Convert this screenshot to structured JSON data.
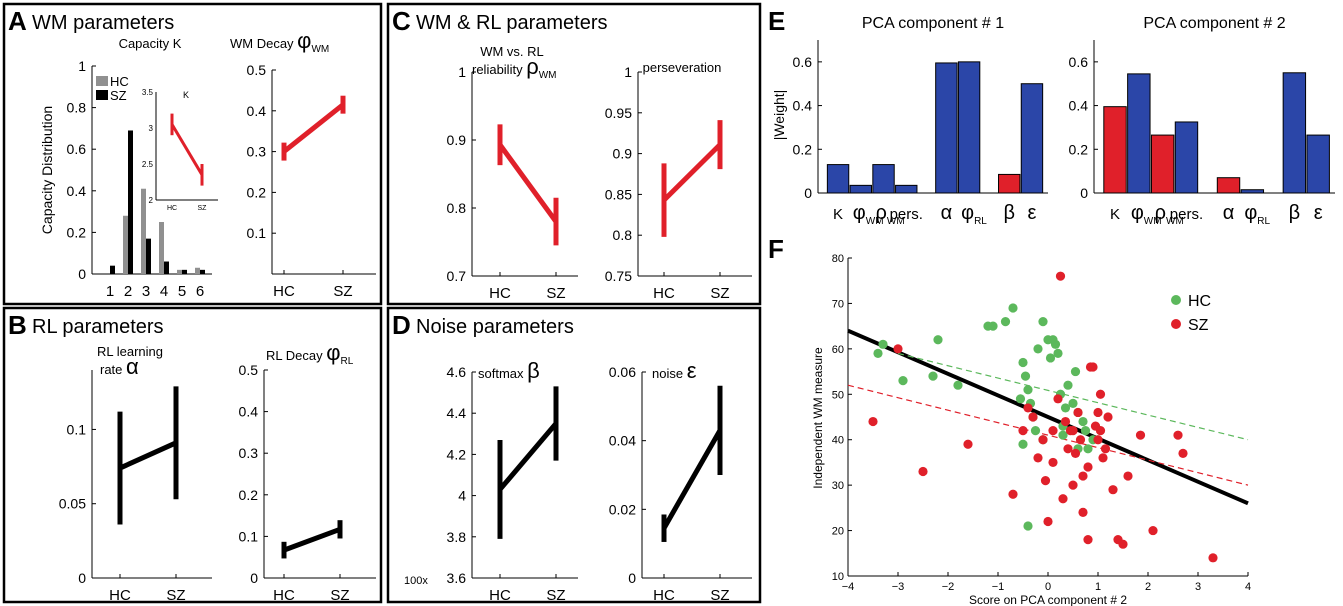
{
  "panels": {
    "A": {
      "letter": "A",
      "title": "WM parameters"
    },
    "B": {
      "letter": "B",
      "title": "RL parameters"
    },
    "C": {
      "letter": "C",
      "title": "WM & RL parameters"
    },
    "D": {
      "letter": "D",
      "title": "Noise parameters"
    },
    "E": {
      "letter": "E"
    },
    "F": {
      "letter": "F"
    }
  },
  "colors": {
    "hc": "#5cb85c",
    "sz": "#e0202a",
    "blue": "#2b46a8",
    "red": "#e0202a",
    "gray": "#909090",
    "black": "#000000"
  },
  "a1": {
    "title": "Capacity K",
    "ylabel": "Capacity Distribution",
    "legend": [
      "HC",
      "SZ"
    ],
    "inset_label": "K"
  },
  "a2": {
    "title_prefix": "WM Decay ",
    "title_sym": "φ",
    "title_sub": "WM"
  },
  "b1": {
    "title_line1": "RL learning",
    "title_line2": "rate ",
    "title_sym": "α"
  },
  "b2": {
    "title_prefix": "RL Decay ",
    "title_sym": "φ",
    "title_sub": "RL"
  },
  "c1": {
    "title_line1": "WM vs. RL",
    "title_line2": "reliability ",
    "title_sym": "ρ",
    "title_sub": "WM"
  },
  "c2": {
    "title": "perseveration"
  },
  "d1": {
    "title_prefix": "softmax ",
    "title_sym": "β",
    "scale_note": "100x"
  },
  "d2": {
    "title_prefix": "noise ",
    "title_sym": "ε"
  },
  "e": {
    "ylabel": "|Weight|",
    "xlabels": [
      {
        "t": "K"
      },
      {
        "t": "φ",
        "s": "WM"
      },
      {
        "t": "ρ",
        "s": "WM"
      },
      {
        "t": "pers."
      },
      {
        "t": "α"
      },
      {
        "t": "φ",
        "s": "RL"
      },
      {
        "t": "β"
      },
      {
        "t": "ε"
      }
    ]
  },
  "f": {
    "xlabel": "Score on PCA component # 2",
    "ylabel": "Independent WM measure",
    "legend": [
      "HC",
      "SZ"
    ]
  },
  "chart_data": [
    {
      "id": "A1",
      "type": "bar",
      "title": "Capacity K",
      "ylabel": "Capacity Distribution",
      "categories": [
        "1",
        "2",
        "3",
        "4",
        "5",
        "6"
      ],
      "ylim": [
        0,
        1
      ],
      "yticks": [
        0,
        0.2,
        0.4,
        0.6,
        0.8,
        1
      ],
      "series": [
        {
          "name": "HC",
          "values": [
            0,
            0.28,
            0.41,
            0.25,
            0.02,
            0.03
          ]
        },
        {
          "name": "SZ",
          "values": [
            0.04,
            0.69,
            0.17,
            0.06,
            0.02,
            0.02
          ]
        }
      ]
    },
    {
      "id": "A1-inset",
      "type": "line",
      "title": "K",
      "categories": [
        "HC",
        "SZ"
      ],
      "ylim": [
        2,
        3.5
      ],
      "yticks": [
        2,
        2.5,
        3,
        3.5
      ],
      "series": [
        {
          "values": [
            3.05,
            2.35
          ],
          "err": [
            0.15,
            0.15
          ]
        }
      ]
    },
    {
      "id": "A2",
      "type": "line",
      "categories": [
        "HC",
        "SZ"
      ],
      "ylim": [
        0,
        0.5
      ],
      "yticks": [
        0.1,
        0.2,
        0.3,
        0.4,
        0.5
      ],
      "series": [
        {
          "values": [
            0.3,
            0.415
          ],
          "err": [
            0.022,
            0.022
          ]
        }
      ]
    },
    {
      "id": "B1",
      "type": "line",
      "categories": [
        "HC",
        "SZ"
      ],
      "ylim": [
        0,
        0.14
      ],
      "yticks": [
        0,
        0.05,
        0.1
      ],
      "series": [
        {
          "values": [
            0.074,
            0.091
          ],
          "err": [
            0.038,
            0.038
          ]
        }
      ]
    },
    {
      "id": "B2",
      "type": "line",
      "categories": [
        "HC",
        "SZ"
      ],
      "ylim": [
        0,
        0.5
      ],
      "yticks": [
        0,
        0.1,
        0.2,
        0.3,
        0.4,
        0.5
      ],
      "series": [
        {
          "values": [
            0.067,
            0.117
          ],
          "err": [
            0.02,
            0.022
          ]
        }
      ]
    },
    {
      "id": "C1",
      "type": "line",
      "categories": [
        "HC",
        "SZ"
      ],
      "ylim": [
        0.7,
        1
      ],
      "yticks": [
        0.7,
        0.8,
        0.9,
        1
      ],
      "series": [
        {
          "values": [
            0.893,
            0.78
          ],
          "err": [
            0.03,
            0.035
          ]
        }
      ]
    },
    {
      "id": "C2",
      "type": "line",
      "categories": [
        "HC",
        "SZ"
      ],
      "ylim": [
        0.75,
        1
      ],
      "yticks": [
        0.75,
        0.8,
        0.85,
        0.9,
        0.95,
        1
      ],
      "series": [
        {
          "values": [
            0.843,
            0.911
          ],
          "err": [
            0.045,
            0.03
          ]
        }
      ]
    },
    {
      "id": "D1",
      "type": "line",
      "categories": [
        "HC",
        "SZ"
      ],
      "ylim": [
        3.6,
        4.6
      ],
      "yticks": [
        3.6,
        3.8,
        4,
        4.2,
        4.4,
        4.6
      ],
      "series": [
        {
          "values": [
            4.03,
            4.35
          ],
          "err": [
            0.24,
            0.18
          ]
        }
      ]
    },
    {
      "id": "D2",
      "type": "line",
      "categories": [
        "HC",
        "SZ"
      ],
      "ylim": [
        0,
        0.06
      ],
      "yticks": [
        0,
        0.02,
        0.04,
        0.06
      ],
      "series": [
        {
          "values": [
            0.0145,
            0.043
          ],
          "err": [
            0.004,
            0.013
          ]
        }
      ]
    },
    {
      "id": "E1",
      "type": "bar",
      "title": "PCA component # 1",
      "ylabel": "|Weight|",
      "categories": [
        "K",
        "φWM",
        "ρWM",
        "pers.",
        "α",
        "φRL",
        "β",
        "ε"
      ],
      "ylim": [
        0,
        0.7
      ],
      "yticks": [
        0,
        0.2,
        0.4,
        0.6
      ],
      "values": [
        0.13,
        0.035,
        0.13,
        0.035,
        0.595,
        0.6,
        0.085,
        0.5
      ],
      "colors": [
        "blue",
        "blue",
        "blue",
        "blue",
        "blue",
        "blue",
        "red",
        "blue"
      ]
    },
    {
      "id": "E2",
      "type": "bar",
      "title": "PCA component # 2",
      "categories": [
        "K",
        "φWM",
        "ρWM",
        "pers.",
        "α",
        "φRL",
        "β",
        "ε"
      ],
      "ylim": [
        0,
        0.7
      ],
      "yticks": [
        0,
        0.2,
        0.4,
        0.6
      ],
      "values": [
        0.395,
        0.545,
        0.265,
        0.325,
        0.07,
        0.015,
        0.55,
        0.265
      ],
      "colors": [
        "red",
        "blue",
        "red",
        "blue",
        "red",
        "blue",
        "blue",
        "blue"
      ]
    },
    {
      "id": "F",
      "type": "scatter",
      "xlabel": "Score on PCA component # 2",
      "ylabel": "Independent WM measure",
      "xlim": [
        -4,
        4
      ],
      "ylim": [
        10,
        80
      ],
      "xticks": [
        -4,
        -3,
        -2,
        -1,
        0,
        1,
        2,
        3,
        4
      ],
      "yticks": [
        10,
        20,
        30,
        40,
        50,
        60,
        70,
        80
      ],
      "series": [
        {
          "name": "HC",
          "points": [
            [
              -3.4,
              59
            ],
            [
              -3.3,
              61
            ],
            [
              -2.9,
              53
            ],
            [
              -2.2,
              62
            ],
            [
              -2.3,
              54
            ],
            [
              -1.8,
              52
            ],
            [
              -1.2,
              65
            ],
            [
              -1.1,
              65
            ],
            [
              -0.85,
              66
            ],
            [
              -0.7,
              69
            ],
            [
              -0.55,
              49
            ],
            [
              -0.5,
              57
            ],
            [
              -0.45,
              54
            ],
            [
              -0.4,
              51
            ],
            [
              -0.35,
              48
            ],
            [
              -0.3,
              45
            ],
            [
              -0.25,
              42
            ],
            [
              -0.2,
              60
            ],
            [
              -0.1,
              66
            ],
            [
              0.0,
              62
            ],
            [
              0.05,
              58
            ],
            [
              0.1,
              62
            ],
            [
              0.15,
              61
            ],
            [
              0.2,
              59
            ],
            [
              0.25,
              50
            ],
            [
              0.3,
              43
            ],
            [
              0.35,
              47
            ],
            [
              0.4,
              52
            ],
            [
              0.5,
              48
            ],
            [
              0.55,
              55
            ],
            [
              0.6,
              46
            ],
            [
              0.7,
              44
            ],
            [
              0.75,
              42
            ],
            [
              0.9,
              40
            ],
            [
              0.3,
              41
            ],
            [
              -0.1,
              40
            ],
            [
              0.6,
              38
            ],
            [
              -0.5,
              39
            ],
            [
              0.8,
              38
            ],
            [
              -0.4,
              21
            ]
          ]
        },
        {
          "name": "SZ",
          "points": [
            [
              -3.5,
              44
            ],
            [
              -2.5,
              33
            ],
            [
              -3.0,
              60
            ],
            [
              -0.7,
              28
            ],
            [
              -0.5,
              42
            ],
            [
              -0.4,
              47
            ],
            [
              -0.3,
              45
            ],
            [
              -0.2,
              36
            ],
            [
              -0.1,
              40
            ],
            [
              -0.05,
              31
            ],
            [
              0.0,
              22
            ],
            [
              0.1,
              35
            ],
            [
              0.1,
              42
            ],
            [
              0.2,
              49
            ],
            [
              0.25,
              76
            ],
            [
              0.3,
              27
            ],
            [
              0.35,
              44
            ],
            [
              0.4,
              38
            ],
            [
              0.45,
              42
            ],
            [
              0.5,
              30
            ],
            [
              0.55,
              37
            ],
            [
              0.6,
              46
            ],
            [
              0.65,
              40
            ],
            [
              0.7,
              24
            ],
            [
              0.8,
              34
            ],
            [
              0.85,
              56
            ],
            [
              0.9,
              56
            ],
            [
              0.95,
              43
            ],
            [
              1.0,
              46
            ],
            [
              1.0,
              40
            ],
            [
              1.05,
              42
            ],
            [
              1.1,
              36
            ],
            [
              1.15,
              38
            ],
            [
              1.2,
              45
            ],
            [
              0.8,
              18
            ],
            [
              1.3,
              29
            ],
            [
              1.4,
              18
            ],
            [
              1.5,
              17
            ],
            [
              1.6,
              32
            ],
            [
              1.85,
              41
            ],
            [
              2.1,
              20
            ],
            [
              2.6,
              41
            ],
            [
              2.7,
              37
            ],
            [
              3.3,
              14
            ],
            [
              1.05,
              50
            ],
            [
              0.7,
              32
            ],
            [
              -1.6,
              39
            ],
            [
              0.5,
              42
            ]
          ]
        }
      ],
      "fits": [
        {
          "name": "All",
          "style": "solid",
          "from": [
            -4,
            64
          ],
          "to": [
            4,
            26
          ]
        },
        {
          "name": "HC",
          "style": "dashed",
          "from": [
            -3,
            59
          ],
          "to": [
            4,
            40
          ]
        },
        {
          "name": "SZ",
          "style": "dashed",
          "from": [
            -4,
            52
          ],
          "to": [
            4,
            30
          ]
        }
      ]
    }
  ]
}
